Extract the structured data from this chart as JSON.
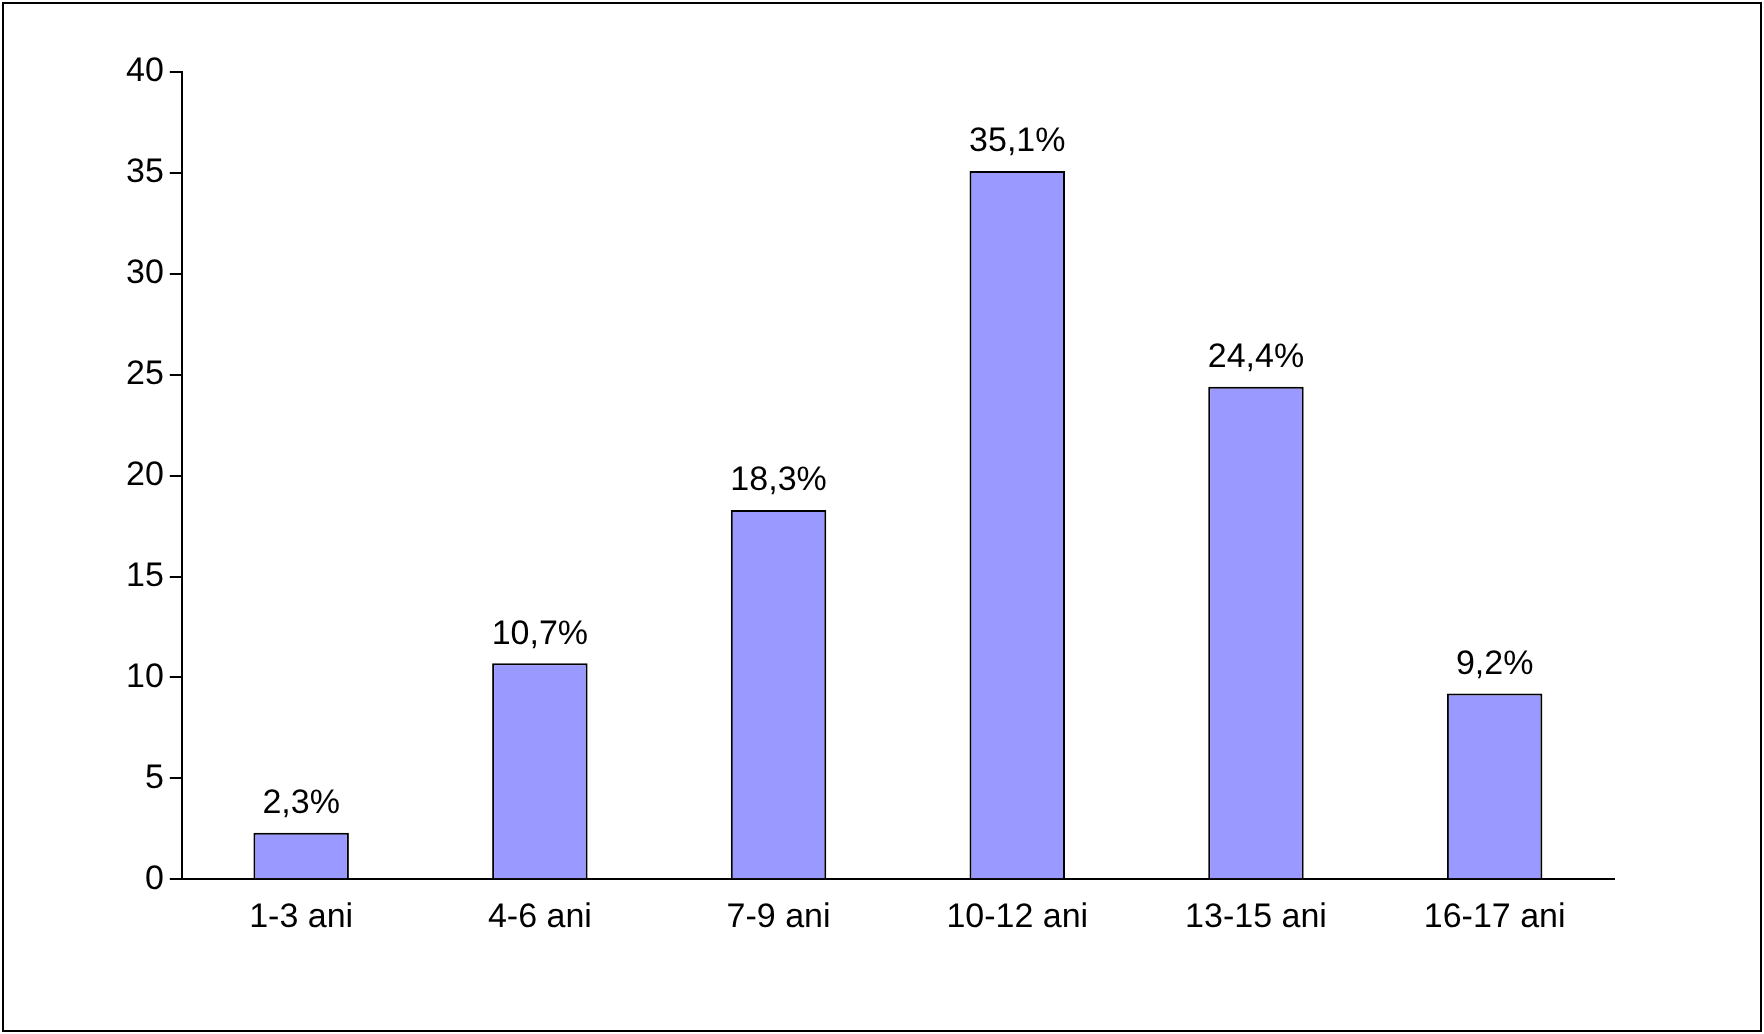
{
  "chart_data": {
    "type": "bar",
    "categories": [
      "1-3 ani",
      "4-6 ani",
      "7-9 ani",
      "10-12 ani",
      "13-15 ani",
      "16-17 ani"
    ],
    "values": [
      2.3,
      10.7,
      18.3,
      35.1,
      24.4,
      9.2
    ],
    "value_labels": [
      "2,3%",
      "10,7%",
      "18,3%",
      "35,1%",
      "24,4%",
      "9,2%"
    ],
    "color": "#9999ff",
    "ylim": [
      0,
      40
    ],
    "yticks": [
      0,
      5,
      10,
      15,
      20,
      25,
      30,
      35,
      40
    ],
    "grid": false,
    "legend": false
  }
}
